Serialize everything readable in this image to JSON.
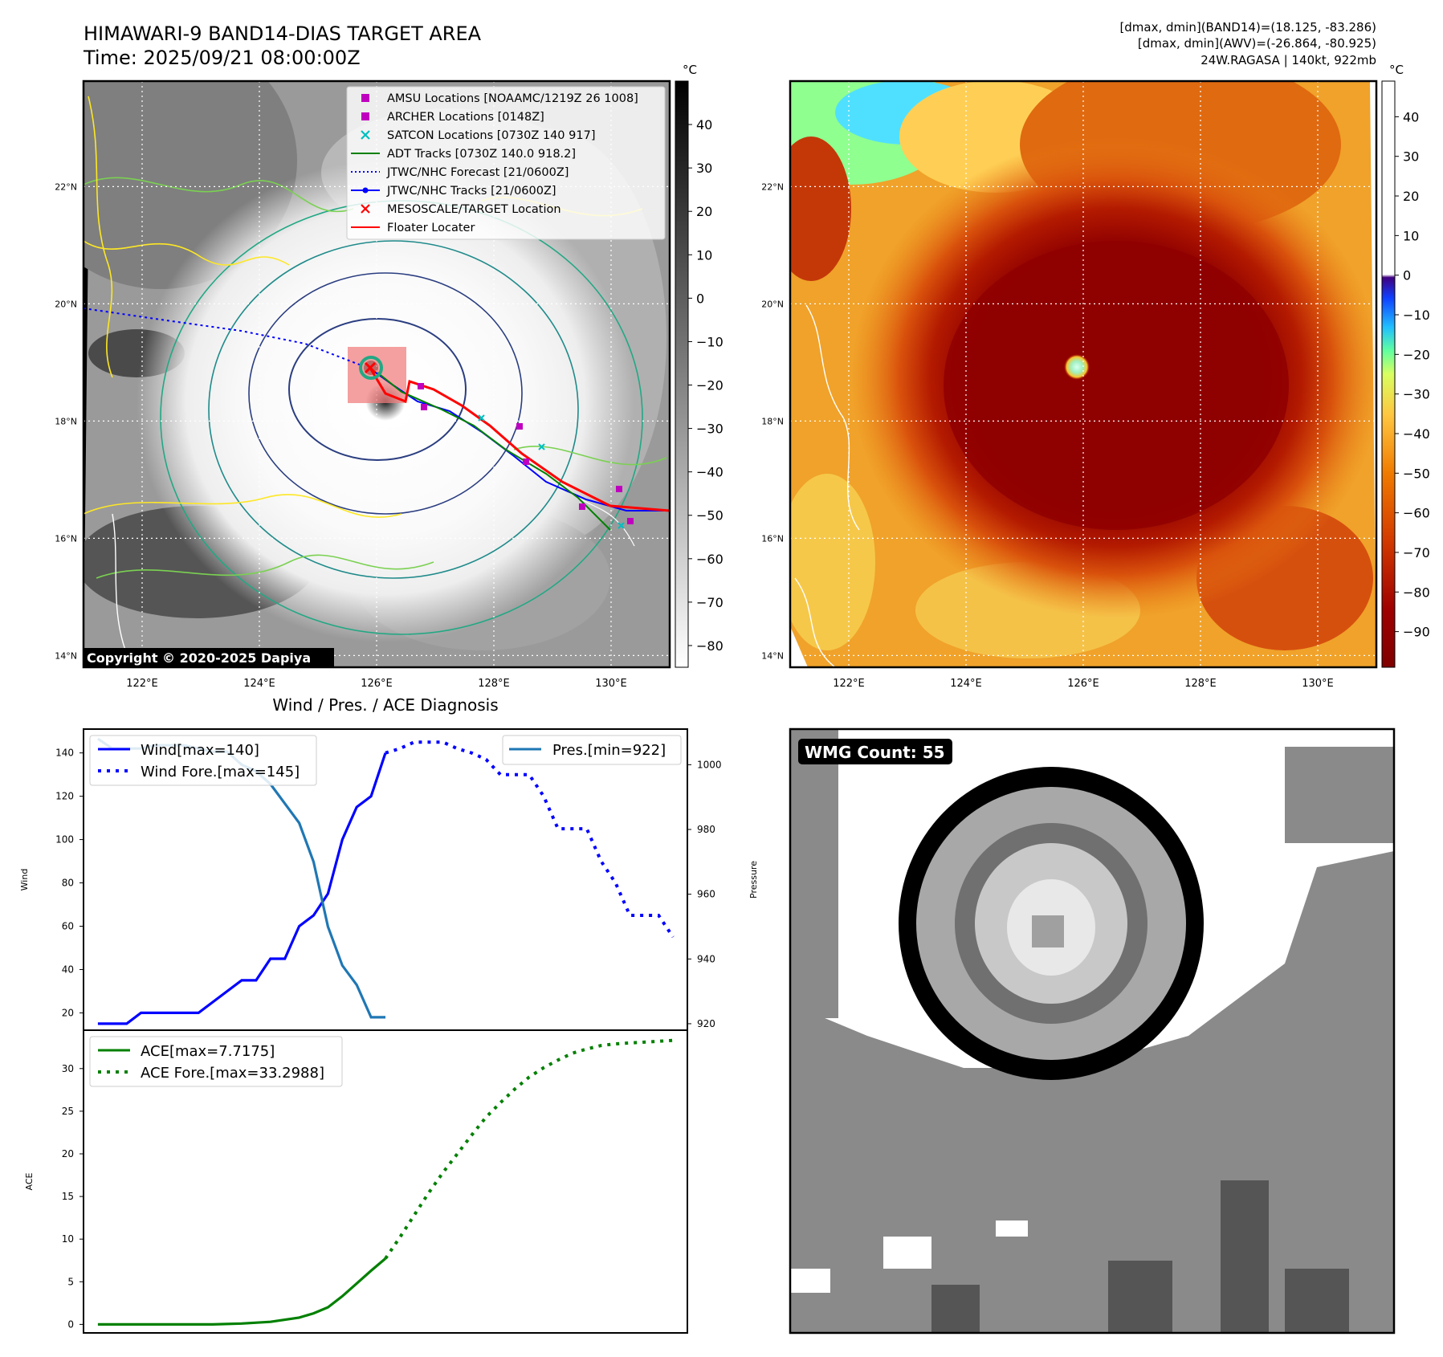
{
  "header": {
    "title_line1": "HIMAWARI-9 BAND14-DIAS TARGET AREA",
    "title_line2": "Time: 2025/09/21 08:00:00Z",
    "right_line1": "[dmax, dmin](BAND14)=(18.125, -83.286)",
    "right_line2": "[dmax, dmin](AWV)=(-26.864, -80.925)",
    "right_line3": "24W.RAGASA | 140kt, 922mb",
    "unit_left": "°C",
    "unit_right": "°C",
    "copyright": "Copyright © 2020-2025 Dapiya",
    "lower_title": "Wind / Pres. / ACE Diagnosis",
    "wmg_badge": "WMG Count: 55"
  },
  "map_axes": {
    "lat_ticks": [
      "22°N",
      "20°N",
      "18°N",
      "16°N",
      "14°N"
    ],
    "lat_values": [
      22,
      20,
      18,
      16,
      14
    ],
    "lon_ticks": [
      "122°E",
      "124°E",
      "126°E",
      "128°E",
      "130°E"
    ],
    "lon_values": [
      122,
      124,
      126,
      128,
      130
    ],
    "lon_range": [
      121.0,
      131.0
    ],
    "lat_range": [
      13.8,
      23.8
    ],
    "storm_center": {
      "lon": 125.95,
      "lat": 18.55
    }
  },
  "legend": {
    "items": [
      {
        "label": "AMSU Locations [NOAAMC/1219Z 26 1008]",
        "color": "#bf00bf",
        "marker": "square"
      },
      {
        "label": "ARCHER Locations [0148Z]",
        "color": "#bf00bf",
        "marker": "square"
      },
      {
        "label": "SATCON Locations [0730Z 140 917]",
        "color": "#00bfbf",
        "marker": "x"
      },
      {
        "label": "ADT Tracks [0730Z 140.0 918.2]",
        "color": "#008000",
        "marker": "line"
      },
      {
        "label": "JTWC/NHC Forecast [21/0600Z]",
        "color": "#0000ff",
        "marker": "dotted"
      },
      {
        "label": "JTWC/NHC Tracks [21/0600Z]",
        "color": "#0000ff",
        "marker": "line-dot"
      },
      {
        "label": "MESOSCALE/TARGET Location",
        "color": "#ff0000",
        "marker": "x"
      },
      {
        "label": "Floater Locater",
        "color": "#ff0000",
        "marker": "line"
      }
    ]
  },
  "colorbars": {
    "left_ticks": [
      "40",
      "30",
      "20",
      "10",
      "0",
      "−10",
      "−20",
      "−30",
      "−40",
      "−50",
      "−60",
      "−70",
      "−80"
    ],
    "left_values": [
      40,
      30,
      20,
      10,
      0,
      -10,
      -20,
      -30,
      -40,
      -50,
      -60,
      -70,
      -80
    ],
    "left_range": [
      -85,
      50
    ],
    "right_ticks": [
      "40",
      "30",
      "20",
      "10",
      "0",
      "−10",
      "−20",
      "−30",
      "−40",
      "−50",
      "−60",
      "−70",
      "−80",
      "−90"
    ],
    "right_values": [
      40,
      30,
      20,
      10,
      0,
      -10,
      -20,
      -30,
      -40,
      -50,
      -60,
      -70,
      -80,
      -90
    ],
    "right_range": [
      -99,
      49
    ]
  },
  "chart_data": [
    {
      "type": "line",
      "title": "Wind / Pres. / ACE Diagnosis",
      "ylabel": "Wind",
      "y2label": "Pressure",
      "ylim": [
        12,
        151
      ],
      "y2lim": [
        918,
        1011
      ],
      "xlim": [
        -1,
        41
      ],
      "yticks": [
        20,
        40,
        60,
        80,
        100,
        120,
        140
      ],
      "y2ticks": [
        920,
        940,
        960,
        980,
        1000
      ],
      "series": [
        {
          "name": "Wind[max=140]",
          "axis": "left",
          "style": "solid",
          "color": "#0000ff",
          "x": [
            0,
            2,
            3,
            4,
            5,
            6,
            7,
            8,
            9,
            10,
            11,
            12,
            13,
            14,
            15,
            16,
            17,
            18,
            19,
            20
          ],
          "y": [
            15,
            15,
            20,
            20,
            20,
            20,
            20,
            25,
            30,
            35,
            35,
            45,
            45,
            60,
            65,
            75,
            100,
            115,
            120,
            140
          ]
        },
        {
          "name": "Wind Fore.[max=145]",
          "axis": "left",
          "style": "dotted",
          "color": "#0000ff",
          "x": [
            20,
            21,
            22,
            23,
            24,
            25,
            26,
            27,
            28,
            29,
            30,
            31,
            32,
            33,
            34,
            35,
            36,
            37,
            38,
            39,
            40
          ],
          "y": [
            140,
            142,
            145,
            145,
            145,
            142,
            140,
            137,
            130,
            130,
            130,
            120,
            105,
            105,
            105,
            90,
            80,
            65,
            65,
            65,
            55
          ]
        },
        {
          "name": "Pres.[min=922]",
          "axis": "right",
          "style": "solid",
          "color": "#1f77b4",
          "x": [
            0,
            1,
            2,
            3,
            4,
            5,
            6,
            7,
            8,
            9,
            10,
            11,
            12,
            13,
            14,
            15,
            16,
            17,
            18,
            19,
            20
          ],
          "y": [
            1008,
            1005,
            1005,
            1005,
            1006,
            1006,
            1006,
            1005,
            1004,
            1004,
            1000,
            998,
            994,
            988,
            982,
            970,
            950,
            938,
            932,
            922,
            922
          ]
        }
      ]
    },
    {
      "type": "line",
      "ylabel": "ACE",
      "ylim": [
        -1,
        34.5
      ],
      "xlim": [
        -1,
        41
      ],
      "yticks": [
        0,
        5,
        10,
        15,
        20,
        25,
        30
      ],
      "series": [
        {
          "name": "ACE[max=7.7175]",
          "style": "solid",
          "color": "#008000",
          "x": [
            0,
            4,
            8,
            10,
            12,
            14,
            15,
            16,
            17,
            18,
            19,
            20
          ],
          "y": [
            0,
            0,
            0,
            0.1,
            0.3,
            0.8,
            1.3,
            2.0,
            3.3,
            4.8,
            6.3,
            7.72
          ]
        },
        {
          "name": "ACE Fore.[max=33.2988]",
          "style": "dotted",
          "color": "#008000",
          "x": [
            20,
            21,
            22,
            23,
            24,
            25,
            26,
            27,
            28,
            29,
            30,
            31,
            32,
            33,
            34,
            35,
            36,
            37,
            38,
            39,
            40
          ],
          "y": [
            7.72,
            10.2,
            12.8,
            15.4,
            17.8,
            20.0,
            22.2,
            24.3,
            26.0,
            27.6,
            29.0,
            30.1,
            31.0,
            31.8,
            32.3,
            32.7,
            32.9,
            33.0,
            33.1,
            33.2,
            33.3
          ]
        }
      ]
    }
  ]
}
